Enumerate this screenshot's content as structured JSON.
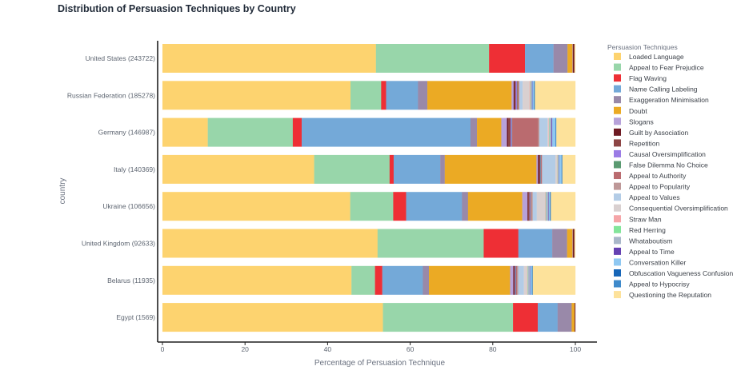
{
  "chart_data": {
    "type": "bar",
    "orientation": "horizontal",
    "stacked": true,
    "title": "Distribution of Persuasion Techniques by Country",
    "xlabel": "Percentage of Persuasion Technique",
    "ylabel": "country",
    "xlim": [
      0,
      100
    ],
    "xticks": [
      0,
      20,
      40,
      60,
      80,
      100
    ],
    "grid": false,
    "legend_title": "Persuasion Techniques",
    "legend_position": "right",
    "categories": [
      "United States (243722)",
      "Russian Federation (185278)",
      "Germany (146987)",
      "Italy (140369)",
      "Ukraine (106656)",
      "United Kingdom (92633)",
      "Belarus (11935)",
      "Egypt (1569)"
    ],
    "series": [
      {
        "name": "Loaded Language",
        "color": "#FDD36F",
        "values": [
          51.7,
          46.0,
          11.2,
          37.4,
          46.7,
          52.1,
          46.6,
          53.4
        ]
      },
      {
        "name": "Appeal to Fear Prejudice",
        "color": "#98D6AA",
        "values": [
          27.4,
          7.5,
          21.0,
          18.6,
          10.7,
          25.7,
          5.8,
          31.5
        ]
      },
      {
        "name": "Flag Waving",
        "color": "#EE2F35",
        "values": [
          8.7,
          1.2,
          2.2,
          1.0,
          3.2,
          8.4,
          1.8,
          6.0
        ]
      },
      {
        "name": "Name Calling Labeling",
        "color": "#74A9D8",
        "values": [
          6.9,
          7.8,
          41.7,
          11.5,
          13.9,
          8.2,
          10.0,
          4.8
        ]
      },
      {
        "name": "Exaggeration Minimisation",
        "color": "#9989A9",
        "values": [
          3.4,
          2.3,
          1.6,
          1.1,
          1.5,
          3.6,
          1.5,
          3.4
        ]
      },
      {
        "name": "Doubt",
        "color": "#EBAA24",
        "values": [
          1.2,
          20.6,
          6.0,
          22.6,
          13.5,
          1.3,
          20.0,
          0.7
        ]
      },
      {
        "name": "Slogans",
        "color": "#B7A2DA",
        "values": [
          0.1,
          0.5,
          1.4,
          0.4,
          1.3,
          0.1,
          0.8,
          0.0
        ]
      },
      {
        "name": "Guilt by Association",
        "color": "#6E1B23",
        "values": [
          0.2,
          0.2,
          0.3,
          0.3,
          0.2,
          0.2,
          0.2,
          0.1
        ]
      },
      {
        "name": "Repetition",
        "color": "#8D4545",
        "values": [
          0.2,
          0.3,
          0.6,
          0.2,
          0.3,
          0.2,
          0.2,
          0.1
        ]
      },
      {
        "name": "Causal Oversimplification",
        "color": "#9B7CE6",
        "values": [
          0.0,
          0.3,
          0.3,
          0.1,
          0.2,
          0.0,
          0.2,
          0.0
        ]
      },
      {
        "name": "False Dilemma No Choice",
        "color": "#5A9A71",
        "values": [
          0.0,
          0.1,
          0.1,
          0.1,
          0.1,
          0.0,
          0.1,
          0.0
        ]
      },
      {
        "name": "Appeal to Authority",
        "color": "#BA6B6F",
        "values": [
          0.0,
          0.3,
          6.4,
          0.2,
          0.2,
          0.0,
          0.2,
          0.0
        ]
      },
      {
        "name": "Appeal to Popularity",
        "color": "#BE9898",
        "values": [
          0.0,
          0.2,
          0.3,
          0.1,
          0.3,
          0.0,
          0.3,
          0.0
        ]
      },
      {
        "name": "Appeal to Values",
        "color": "#B3CCE6",
        "values": [
          0.0,
          0.8,
          2.0,
          3.3,
          1.0,
          0.0,
          1.4,
          0.0
        ]
      },
      {
        "name": "Consequential Oversimplification",
        "color": "#D9D0D0",
        "values": [
          0.0,
          1.7,
          0.3,
          0.4,
          2.1,
          0.0,
          0.8,
          0.0
        ]
      },
      {
        "name": "Straw Man",
        "color": "#F5A5A8",
        "values": [
          0.0,
          0.2,
          0.1,
          0.1,
          0.1,
          0.0,
          0.1,
          0.0
        ]
      },
      {
        "name": "Red Herring",
        "color": "#83E59A",
        "values": [
          0.0,
          0.1,
          0.1,
          0.1,
          0.1,
          0.0,
          0.1,
          0.0
        ]
      },
      {
        "name": "Whataboutism",
        "color": "#A9B7C9",
        "values": [
          0.0,
          0.3,
          0.5,
          0.2,
          0.6,
          0.0,
          0.5,
          0.0
        ]
      },
      {
        "name": "Appeal to Time",
        "color": "#6541B2",
        "values": [
          0.0,
          0.1,
          0.2,
          0.1,
          0.1,
          0.0,
          0.1,
          0.0
        ]
      },
      {
        "name": "Conversation Killer",
        "color": "#8FC8F2",
        "values": [
          0.0,
          0.4,
          0.8,
          0.6,
          0.3,
          0.0,
          0.4,
          0.0
        ]
      },
      {
        "name": "Obfuscation Vagueness Confusion",
        "color": "#1766B8",
        "values": [
          0.0,
          0.1,
          0.1,
          0.1,
          0.1,
          0.0,
          0.1,
          0.0
        ]
      },
      {
        "name": "Appeal to Hypocrisy",
        "color": "#3F8ACB",
        "values": [
          0.0,
          0.1,
          0.1,
          0.1,
          0.1,
          0.0,
          0.1,
          0.0
        ]
      },
      {
        "name": "Questioning the Reputation",
        "color": "#FDE29B",
        "values": [
          0.2,
          9.9,
          4.7,
          3.2,
          6.1,
          0.2,
          10.5,
          0.0
        ]
      }
    ]
  }
}
